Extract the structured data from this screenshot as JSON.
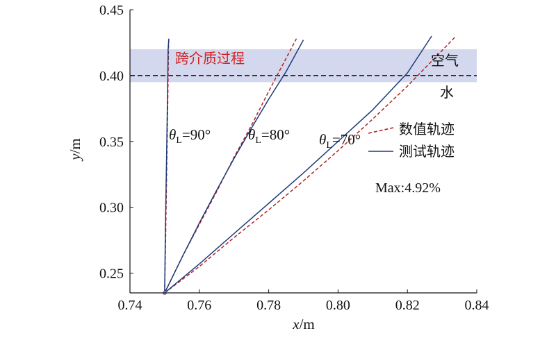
{
  "chart_data": {
    "type": "line",
    "xlabel_var": "x",
    "xlabel_unit": "/m",
    "ylabel_var": "y",
    "ylabel_unit": "/m",
    "xlim": [
      0.74,
      0.84
    ],
    "ylim": [
      0.235,
      0.45
    ],
    "xticks": [
      "0.74",
      "0.76",
      "0.78",
      "0.80",
      "0.82",
      "0.84"
    ],
    "yticks": [
      "0.25",
      "0.30",
      "0.35",
      "0.40",
      "0.45"
    ],
    "band": {
      "y_min": 0.395,
      "y_max": 0.42,
      "color": "#d3d8ee"
    },
    "interface": {
      "y": 0.4,
      "style": "dashed"
    },
    "region_labels": {
      "crossing": "跨介质过程",
      "air": "空气",
      "water": "水"
    },
    "angle_labels": [
      {
        "theta": "θ",
        "sub": "L",
        "text": "=90°"
      },
      {
        "theta": "θ",
        "sub": "L",
        "text": "=80°"
      },
      {
        "theta": "θ",
        "sub": "L",
        "text": "=70°"
      }
    ],
    "annotation": "Max:4.92%",
    "legend": {
      "placement": "right",
      "items": [
        {
          "label": "数值轨迹",
          "style": "dashed",
          "color": "#b22222"
        },
        {
          "label": "测试轨迹",
          "style": "solid",
          "color": "#1f3a7a"
        }
      ]
    },
    "series": [
      {
        "group": "90°",
        "kind": "numerical",
        "color": "#b22222",
        "points": [
          [
            0.75,
            0.235
          ],
          [
            0.7503,
            0.28
          ],
          [
            0.7506,
            0.33
          ],
          [
            0.7509,
            0.38
          ],
          [
            0.7511,
            0.42
          ],
          [
            0.7512,
            0.428
          ]
        ]
      },
      {
        "group": "90°",
        "kind": "test",
        "color": "#1f3a7a",
        "points": [
          [
            0.75,
            0.235
          ],
          [
            0.7502,
            0.28
          ],
          [
            0.7505,
            0.33
          ],
          [
            0.7508,
            0.38
          ],
          [
            0.751,
            0.42
          ],
          [
            0.7512,
            0.428
          ]
        ]
      },
      {
        "group": "80°",
        "kind": "numerical",
        "color": "#b22222",
        "points": [
          [
            0.75,
            0.235
          ],
          [
            0.755,
            0.262
          ],
          [
            0.76,
            0.287
          ],
          [
            0.765,
            0.312
          ],
          [
            0.77,
            0.338
          ],
          [
            0.775,
            0.362
          ],
          [
            0.78,
            0.388
          ],
          [
            0.785,
            0.413
          ],
          [
            0.788,
            0.428
          ]
        ]
      },
      {
        "group": "80°",
        "kind": "test",
        "color": "#1f3a7a",
        "points": [
          [
            0.75,
            0.235
          ],
          [
            0.755,
            0.262
          ],
          [
            0.76,
            0.288
          ],
          [
            0.765,
            0.313
          ],
          [
            0.77,
            0.337
          ],
          [
            0.775,
            0.36
          ],
          [
            0.78,
            0.382
          ],
          [
            0.785,
            0.403
          ],
          [
            0.79,
            0.427
          ]
        ]
      },
      {
        "group": "70°",
        "kind": "numerical",
        "color": "#b22222",
        "points": [
          [
            0.75,
            0.235
          ],
          [
            0.76,
            0.255
          ],
          [
            0.77,
            0.277
          ],
          [
            0.78,
            0.298
          ],
          [
            0.79,
            0.32
          ],
          [
            0.8,
            0.343
          ],
          [
            0.81,
            0.367
          ],
          [
            0.82,
            0.392
          ],
          [
            0.83,
            0.419
          ],
          [
            0.834,
            0.43
          ]
        ]
      },
      {
        "group": "70°",
        "kind": "test",
        "color": "#1f3a7a",
        "points": [
          [
            0.75,
            0.235
          ],
          [
            0.76,
            0.257
          ],
          [
            0.77,
            0.28
          ],
          [
            0.78,
            0.303
          ],
          [
            0.79,
            0.326
          ],
          [
            0.8,
            0.35
          ],
          [
            0.81,
            0.374
          ],
          [
            0.82,
            0.402
          ],
          [
            0.827,
            0.43
          ]
        ]
      }
    ]
  }
}
